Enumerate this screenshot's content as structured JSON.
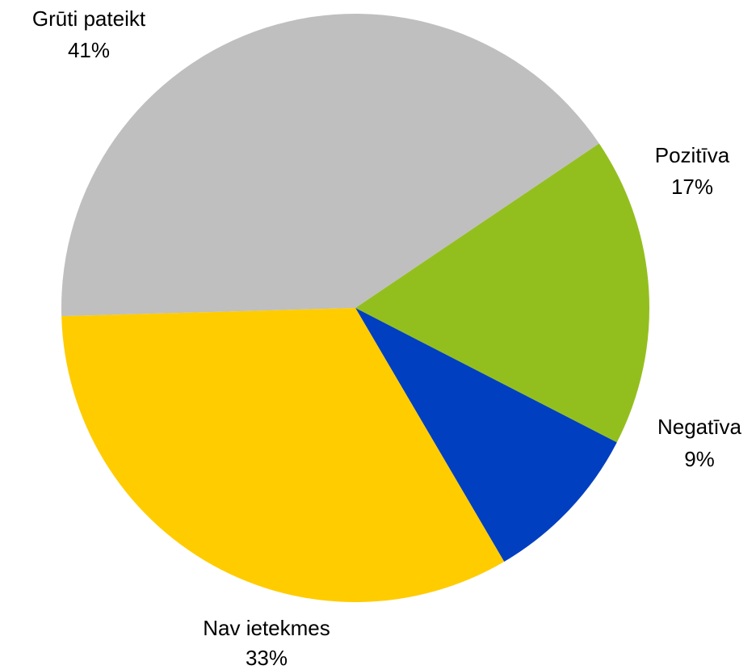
{
  "chart_data": {
    "type": "pie",
    "title": "",
    "start_angle_deg": 56,
    "direction": "clockwise",
    "slices": [
      {
        "label": "Pozitīva",
        "value": 17,
        "value_label": "17%",
        "color": "#93BF1E"
      },
      {
        "label": "Negatīva",
        "value": 9,
        "value_label": "9%",
        "color": "#003FBF"
      },
      {
        "label": "Nav ietekmes",
        "value": 33,
        "value_label": "33%",
        "color": "#FFCC00"
      },
      {
        "label": "Grūti pateikt",
        "value": 41,
        "value_label": "41%",
        "color": "#BFBFBF"
      }
    ],
    "legend": "none"
  }
}
